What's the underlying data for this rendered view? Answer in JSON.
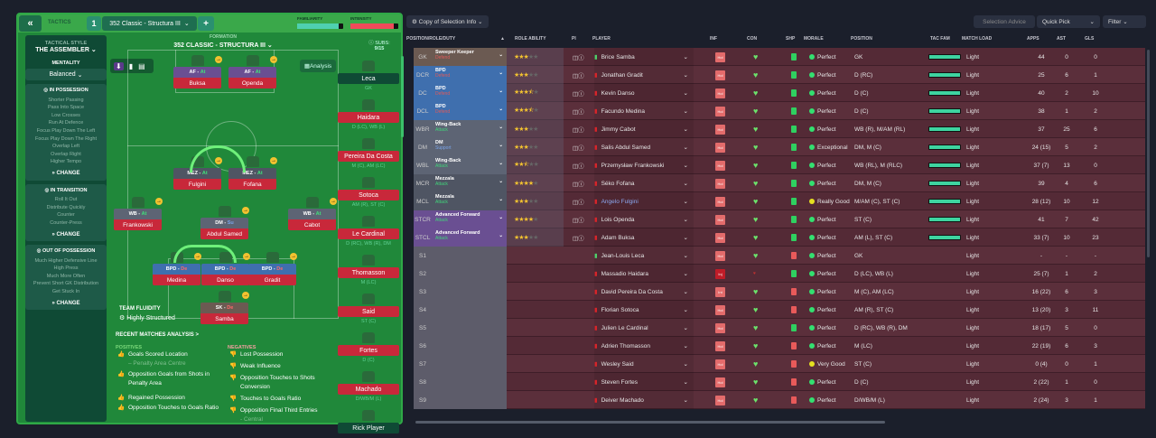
{
  "header": {
    "collapse": "«",
    "tactics_label": "TACTICS",
    "slot": "1",
    "tactic_name": "352 Classic  - Structura III",
    "add": "+",
    "familiarity_label": "FAMILIARITY",
    "intensity_label": "INTENSITY",
    "familiarity": 0.9,
    "intensity": 0.9
  },
  "sidebar": {
    "style_label": "TACTICAL STYLE",
    "style": "THE ASSEMBLER",
    "mentality_label": "MENTALITY",
    "mentality": "Balanced",
    "sections": [
      {
        "title": "IN POSSESSION",
        "items": [
          "Shorter Passing",
          "Pass Into Space",
          "Low Crosses",
          "Run At Defence",
          "Focus Play Down The Left",
          "Focus Play Down The Right",
          "Overlap Left",
          "Overlap Right",
          "Higher Tempo"
        ],
        "change": "CHANGE"
      },
      {
        "title": "IN TRANSITION",
        "items": [
          "Roll It Out",
          "Distribute Quickly",
          "Counter",
          "Counter-Press"
        ],
        "change": "CHANGE"
      },
      {
        "title": "OUT OF POSSESSION",
        "items": [
          "Much Higher Defensive Line",
          "High Press",
          "Much More Often",
          "Prevent Short GK Distribution",
          "Get Stuck In"
        ],
        "change": "CHANGE"
      }
    ]
  },
  "formation": {
    "label": "FORMATION",
    "name": "352 CLASSIC  - STRUCTURA III",
    "analysis": "Analysis",
    "subs_label": "SUBS:",
    "subs_count": "9/15",
    "fluidity_label": "TEAM FLUIDITY",
    "fluidity": "Highly Structured"
  },
  "pitch": [
    {
      "role": "AF",
      "duty": "At",
      "name": "Buksa",
      "type": "fwd"
    },
    {
      "role": "AF",
      "duty": "At",
      "name": "Openda",
      "type": "fwd"
    },
    {
      "role": "MEZ",
      "duty": "At",
      "name": "Fulgini",
      "type": "mid"
    },
    {
      "role": "MEZ",
      "duty": "At",
      "name": "Fofana",
      "type": "mid"
    },
    {
      "role": "WB",
      "duty": "At",
      "name": "Frankowski",
      "type": "wb"
    },
    {
      "role": "DM",
      "duty": "Su",
      "name": "Abdul Samed",
      "type": "wb"
    },
    {
      "role": "WB",
      "duty": "At",
      "name": "Cabot",
      "type": "wb"
    },
    {
      "role": "BPD",
      "duty": "De",
      "name": "Medina",
      "type": "def"
    },
    {
      "role": "BPD",
      "duty": "De",
      "name": "Danso",
      "type": "def"
    },
    {
      "role": "BPD",
      "duty": "De",
      "name": "Gradit",
      "type": "def"
    },
    {
      "role": "SK",
      "duty": "De",
      "name": "Samba",
      "type": "gk"
    }
  ],
  "subs": [
    {
      "name": "Leca",
      "pos": "GK"
    },
    {
      "name": "Haidara",
      "pos": "D (LC), WB (L)"
    },
    {
      "name": "Pereira Da Costa",
      "pos": "M (C), AM (LC)"
    },
    {
      "name": "Sotoca",
      "pos": "AM (R), ST (C)"
    },
    {
      "name": "Le Cardinal",
      "pos": "D (RC), WB (R), DM"
    },
    {
      "name": "Thomasson",
      "pos": "M (LC)"
    },
    {
      "name": "Said",
      "pos": "ST (C)"
    },
    {
      "name": "Fortes",
      "pos": "D (C)"
    },
    {
      "name": "Machado",
      "pos": "D/WB/M (L)"
    },
    {
      "name": "Rick Player",
      "pos": ""
    }
  ],
  "analysis": {
    "title": "RECENT MATCHES ANALYSIS >",
    "positives_label": "POSITIVES",
    "negatives_label": "NEGATIVES",
    "positives": [
      "Goals Scored Location",
      "– Penalty Area Centre",
      "Opposition Goals from Shots in Penalty Area",
      "Regained Possession",
      "Opposition Touches to Goals Ratio"
    ],
    "negatives": [
      "Lost Possession",
      "Weak Influence",
      "Opposition Touches to Shots Conversion",
      "Touches to Goals Ratio",
      "Opposition Final Third Entries",
      "- Central"
    ]
  },
  "toolbar": {
    "copy": "Copy of Selection Info",
    "advice": "Selection Advice",
    "quick_pick": "Quick Pick",
    "filter": "Filter"
  },
  "columns": [
    "POSITION/ROLE/DUTY",
    "ROLE ABILITY",
    "PI",
    "PLAYER",
    "INF",
    "CON",
    "SHP",
    "MORALE",
    "POSITION",
    "TAC FAM",
    "MATCH LOAD",
    "APPS",
    "AST",
    "GLS"
  ],
  "rows": [
    {
      "code": "GK",
      "role": "Sweeper Keeper",
      "duty": "Defend",
      "stars": 3,
      "player": "Brice Samba",
      "inf": "Hol",
      "morale": "Perfect",
      "position": "GK",
      "load": "Light",
      "apps": "44",
      "ast": "0",
      "gls": "0",
      "type": "gk"
    },
    {
      "code": "DCR",
      "role": "BPD",
      "duty": "Defend",
      "stars": 3,
      "player": "Jonathan Gradit",
      "inf": "Hol",
      "morale": "Perfect",
      "position": "D (RC)",
      "load": "Light",
      "apps": "25",
      "ast": "6",
      "gls": "1",
      "type": "def"
    },
    {
      "code": "DC",
      "role": "BPD",
      "duty": "Defend",
      "stars": 3.5,
      "player": "Kevin Danso",
      "inf": "Hol",
      "morale": "Perfect",
      "position": "D (C)",
      "load": "Light",
      "apps": "40",
      "ast": "2",
      "gls": "10",
      "type": "def"
    },
    {
      "code": "DCL",
      "role": "BPD",
      "duty": "Defend",
      "stars": 3.5,
      "player": "Facundo Medina",
      "inf": "Hol",
      "morale": "Perfect",
      "position": "D (C)",
      "load": "Light",
      "apps": "38",
      "ast": "1",
      "gls": "2",
      "type": "def"
    },
    {
      "code": "WBR",
      "role": "Wing-Back",
      "duty": "Attack",
      "stars": 3,
      "player": "Jimmy Cabot",
      "inf": "Hol",
      "morale": "Perfect",
      "position": "WB (R), M/AM (RL)",
      "load": "Light",
      "apps": "37",
      "ast": "25",
      "gls": "6",
      "type": "wb"
    },
    {
      "code": "DM",
      "role": "DM",
      "duty": "Support",
      "stars": 3,
      "player": "Salis Abdul Samed",
      "inf": "Hol",
      "morale": "Exceptional",
      "position": "DM, M (C)",
      "load": "Light",
      "apps": "24 (15)",
      "ast": "5",
      "gls": "2",
      "type": "wb"
    },
    {
      "code": "WBL",
      "role": "Wing-Back",
      "duty": "Attack",
      "stars": 2.5,
      "player": "Przemysław Frankowski",
      "inf": "Hol",
      "morale": "Perfect",
      "position": "WB (RL), M (RLC)",
      "load": "Light",
      "apps": "37 (7)",
      "ast": "13",
      "gls": "0",
      "type": "wb"
    },
    {
      "code": "MCR",
      "role": "Mezzala",
      "duty": "Attack",
      "stars": 4,
      "player": "Séko Fofana",
      "inf": "Hol",
      "morale": "Perfect",
      "position": "DM, M (C)",
      "load": "Light",
      "apps": "39",
      "ast": "4",
      "gls": "6",
      "type": "mid"
    },
    {
      "code": "MCL",
      "role": "Mezzala",
      "duty": "Attack",
      "stars": 3,
      "player": "Angelo Fulgini",
      "inf": "Hol",
      "morale": "Really Good",
      "position": "M/AM (C), ST (C)",
      "load": "Light",
      "apps": "28 (12)",
      "ast": "10",
      "gls": "12",
      "type": "mid"
    },
    {
      "code": "STCR",
      "role": "Advanced Forward",
      "duty": "Attack",
      "stars": 4,
      "player": "Lois Openda",
      "inf": "Hol",
      "morale": "Perfect",
      "position": "ST (C)",
      "load": "Light",
      "apps": "41",
      "ast": "7",
      "gls": "42",
      "type": "fwd"
    },
    {
      "code": "STCL",
      "role": "Advanced Forward",
      "duty": "Attack",
      "stars": 3,
      "player": "Adam Buksa",
      "inf": "Hol",
      "morale": "Perfect",
      "position": "AM (L), ST (C)",
      "load": "Light",
      "apps": "33 (7)",
      "ast": "10",
      "gls": "23",
      "type": "fwd"
    },
    {
      "code": "S1",
      "player": "Jean-Louis Leca",
      "inf": "Hol",
      "morale": "Perfect",
      "position": "GK",
      "load": "Light",
      "apps": "-",
      "ast": "-",
      "gls": "-"
    },
    {
      "code": "S2",
      "player": "Massadio Haidara",
      "inf": "Inj",
      "morale": "Perfect",
      "position": "D (LC), WB (L)",
      "load": "Light",
      "apps": "25 (7)",
      "ast": "1",
      "gls": "2"
    },
    {
      "code": "S3",
      "player": "David Pereira Da Costa",
      "inf": "Int",
      "morale": "Perfect",
      "position": "M (C), AM (LC)",
      "load": "Light",
      "apps": "16 (22)",
      "ast": "6",
      "gls": "3"
    },
    {
      "code": "S4",
      "player": "Florian Sotoca",
      "inf": "Hol",
      "morale": "Perfect",
      "position": "AM (R), ST (C)",
      "load": "Light",
      "apps": "13 (20)",
      "ast": "3",
      "gls": "11"
    },
    {
      "code": "S5",
      "player": "Julien Le Cardinal",
      "inf": "Hol",
      "morale": "Perfect",
      "position": "D (RC), WB (R), DM",
      "load": "Light",
      "apps": "18 (17)",
      "ast": "5",
      "gls": "0"
    },
    {
      "code": "S6",
      "player": "Adrien Thomasson",
      "inf": "Hol",
      "morale": "Perfect",
      "position": "M (LC)",
      "load": "Light",
      "apps": "22 (19)",
      "ast": "6",
      "gls": "3"
    },
    {
      "code": "S7",
      "player": "Wesley Said",
      "inf": "Hol",
      "morale": "Very Good",
      "position": "ST (C)",
      "load": "Light",
      "apps": "0 (4)",
      "ast": "0",
      "gls": "1"
    },
    {
      "code": "S8",
      "player": "Steven Fortes",
      "inf": "Hol",
      "morale": "Perfect",
      "position": "D (C)",
      "load": "Light",
      "apps": "2 (22)",
      "ast": "1",
      "gls": "0"
    },
    {
      "code": "S9",
      "player": "Deiver Machado",
      "inf": "Hol",
      "morale": "Perfect",
      "position": "D/WB/M (L)",
      "load": "Light",
      "apps": "2 (24)",
      "ast": "3",
      "gls": "1"
    }
  ],
  "colors": {
    "gk": "#6b5a52",
    "def": "#3f6fae",
    "wb": "#5d6474",
    "mid": "#4f5563",
    "fwd": "#6a4f92",
    "Defend": "#e05a5a",
    "Support": "#7aa4e8",
    "Attack": "#40d47a",
    "De": "#ff6a6a",
    "Su": "#7aa4e8",
    "At": "#40e07a"
  }
}
